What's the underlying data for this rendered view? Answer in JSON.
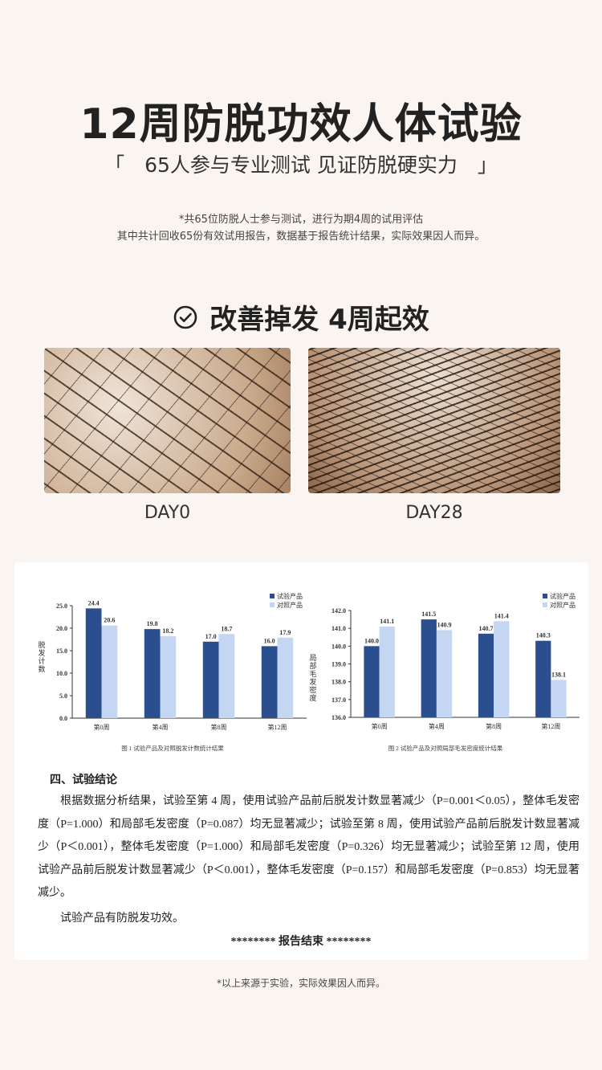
{
  "title": "12周防脱功效人体试验",
  "subtitle": "「　65人参与专业测试 见证防脱硬实力　」",
  "notes": [
    "*共65位防脱人士参与测试，进行为期4周的试用评估",
    "其中共计回收65份有效试用报告，数据基于报告统计结果，实际效果因人而异。"
  ],
  "heading": {
    "icon": "check-circle-icon",
    "text": "改善掉发 4周起效"
  },
  "photos": [
    {
      "label": "DAY0"
    },
    {
      "label": "DAY28"
    }
  ],
  "colors": {
    "test": "#2b4f8e",
    "control": "#c5d6f2",
    "background": "#faf5f0"
  },
  "chart_data": [
    {
      "type": "bar",
      "categories": [
        "第0周",
        "第4周",
        "第8周",
        "第12周"
      ],
      "series": [
        {
          "name": "试验产品",
          "values": [
            24.4,
            19.8,
            17.0,
            16.0
          ]
        },
        {
          "name": "对照产品",
          "values": [
            20.6,
            18.2,
            18.7,
            17.9
          ]
        }
      ],
      "ylabel": "脱发计数",
      "ylim": [
        0,
        25
      ],
      "yticks": [
        "0.0",
        "5.0",
        "10.0",
        "15.0",
        "20.0",
        "25.0"
      ],
      "caption": "图 1  试验产品及对照脱发计数统计结果",
      "legend": "top-right",
      "grid": false
    },
    {
      "type": "bar",
      "categories": [
        "第0周",
        "第4周",
        "第8周",
        "第12周"
      ],
      "series": [
        {
          "name": "试验产品",
          "values": [
            140.0,
            141.5,
            140.7,
            140.3
          ]
        },
        {
          "name": "对照产品",
          "values": [
            141.1,
            140.9,
            141.4,
            138.1
          ]
        }
      ],
      "ylabel": "局部毛发密度",
      "ylim": [
        136,
        142
      ],
      "yticks": [
        "136.0",
        "137.0",
        "138.0",
        "139.0",
        "140.0",
        "141.0",
        "142.0"
      ],
      "caption": "图 2  试验产品及对照局部毛发密度统计结果",
      "legend": "top-right",
      "grid": false
    }
  ],
  "conclusion": {
    "heading": "四、试验结论",
    "paragraph": "根据数据分析结果，试验至第 4 周，使用试验产品前后脱发计数显著减少（P=0.001＜0.05），整体毛发密度（P=1.000）和局部毛发密度（P=0.087）均无显著减少；试验至第 8 周，使用试验产品前后脱发计数显著减少（P＜0.001），整体毛发密度（P=1.000）和局部毛发密度（P=0.326）均无显著减少；试验至第 12 周，使用试验产品前后脱发计数显著减少（P＜0.001），整体毛发密度（P=0.157）和局部毛发密度（P=0.853）均无显著减少。",
    "summary": "试验产品有防脱发功效。",
    "end": "********  报告结束  ********"
  },
  "footnote": "*以上来源于实验，实际效果因人而异。"
}
